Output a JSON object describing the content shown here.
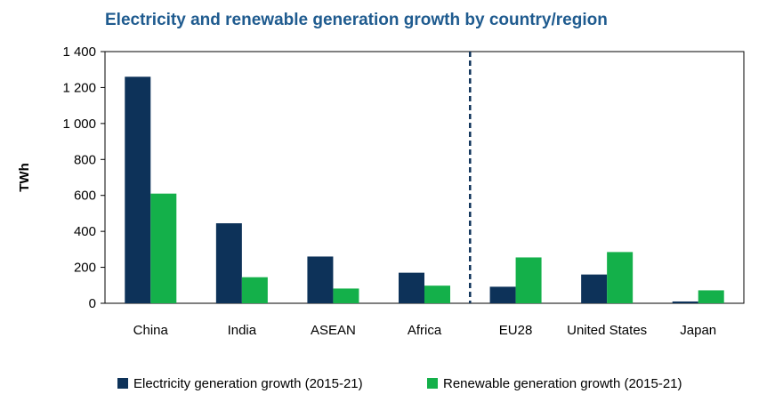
{
  "chart_data": {
    "type": "bar",
    "title": "Electricity and renewable generation growth by country/region",
    "xlabel": "",
    "ylabel": "TWh",
    "ylim": [
      0,
      1400
    ],
    "yticks": [
      0,
      200,
      400,
      600,
      800,
      1000,
      1200,
      1400
    ],
    "ytick_labels": [
      "0",
      "200",
      "400",
      "600",
      "800",
      "1 000",
      "1 200",
      "1 400"
    ],
    "categories": [
      "China",
      "India",
      "ASEAN",
      "Africa",
      "EU28",
      "United  States",
      "Japan"
    ],
    "series": [
      {
        "name": "Electricity  generation  growth  (2015-21)",
        "color": "#0d3259",
        "values": [
          1260,
          445,
          260,
          170,
          92,
          160,
          10
        ]
      },
      {
        "name": "Renewable  generation  growth  (2015-21)",
        "color": "#14b04a",
        "values": [
          610,
          145,
          82,
          98,
          255,
          285,
          72
        ]
      }
    ],
    "divider_after_category": "Africa",
    "grid": false,
    "legend_position": "bottom"
  }
}
